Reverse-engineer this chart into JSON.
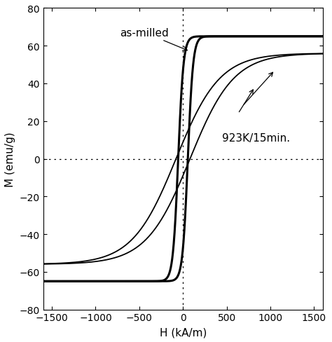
{
  "xlim": [
    -1600,
    1600
  ],
  "ylim": [
    -80,
    80
  ],
  "xlabel": "H (kA/m)",
  "ylabel": "M (emu/g)",
  "xticks": [
    -1500,
    -1000,
    -500,
    0,
    500,
    1000,
    1500
  ],
  "yticks": [
    -80,
    -60,
    -40,
    -20,
    0,
    20,
    40,
    60,
    80
  ],
  "label_asmilled": "as-milled",
  "label_annealed": "923K/15min.",
  "figsize": [
    4.74,
    4.89
  ],
  "dpi": 100,
  "bg_color": "#ffffff",
  "line_color": "#000000",
  "asmilled_linewidth": 2.2,
  "annealed_linewidth": 1.3,
  "am_Ms": 65.0,
  "am_Hc": 55.0,
  "am_alpha": 60.0,
  "am_sat_alpha": 400.0,
  "an_Ms": 56.0,
  "an_Hc": 80.0,
  "an_alpha": 500.0,
  "an_sat_alpha": 800.0
}
